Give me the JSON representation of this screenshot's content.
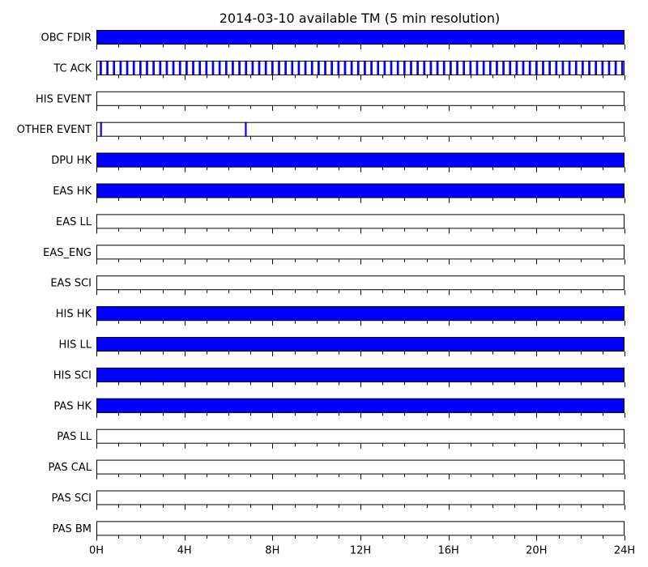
{
  "chart_data": {
    "type": "timeline",
    "title": "2014-03-10 available TM (5 min resolution)",
    "x_unit": "hours",
    "xlim": [
      0,
      24
    ],
    "x_ticks": [
      0,
      4,
      8,
      12,
      16,
      20,
      24
    ],
    "x_tick_labels": [
      "0H",
      "4H",
      "8H",
      "12H",
      "16H",
      "20H",
      "24H"
    ],
    "x_minor_step": 1,
    "colors": {
      "available": "#0000ff",
      "edge": "#000000",
      "background": "#ffffff"
    },
    "rows": [
      {
        "label": "OBC FDIR",
        "intervals": [
          [
            0,
            24
          ]
        ]
      },
      {
        "label": "TC ACK",
        "intervals": [
          [
            0.15,
            0.25
          ],
          [
            0.45,
            0.55
          ],
          [
            0.75,
            0.85
          ],
          [
            1.05,
            1.15
          ],
          [
            1.35,
            1.45
          ],
          [
            1.65,
            1.75
          ],
          [
            1.95,
            2.05
          ],
          [
            2.25,
            2.35
          ],
          [
            2.55,
            2.65
          ],
          [
            2.85,
            2.95
          ],
          [
            3.15,
            3.25
          ],
          [
            3.45,
            3.55
          ],
          [
            3.75,
            3.85
          ],
          [
            4.05,
            4.15
          ],
          [
            4.35,
            4.45
          ],
          [
            4.65,
            4.75
          ],
          [
            4.95,
            5.05
          ],
          [
            5.25,
            5.35
          ],
          [
            5.55,
            5.65
          ],
          [
            5.85,
            5.95
          ],
          [
            6.15,
            6.25
          ],
          [
            6.45,
            6.55
          ],
          [
            6.75,
            6.85
          ],
          [
            7.05,
            7.15
          ],
          [
            7.35,
            7.45
          ],
          [
            7.65,
            7.75
          ],
          [
            7.95,
            8.05
          ],
          [
            8.25,
            8.35
          ],
          [
            8.55,
            8.65
          ],
          [
            8.85,
            8.95
          ],
          [
            9.15,
            9.25
          ],
          [
            9.45,
            9.55
          ],
          [
            9.75,
            9.85
          ],
          [
            10.05,
            10.15
          ],
          [
            10.35,
            10.45
          ],
          [
            10.65,
            10.75
          ],
          [
            10.95,
            11.05
          ],
          [
            11.25,
            11.35
          ],
          [
            11.55,
            11.65
          ],
          [
            11.85,
            11.95
          ],
          [
            12.15,
            12.25
          ],
          [
            12.45,
            12.55
          ],
          [
            12.75,
            12.85
          ],
          [
            13.05,
            13.15
          ],
          [
            13.35,
            13.45
          ],
          [
            13.65,
            13.75
          ],
          [
            13.95,
            14.05
          ],
          [
            14.25,
            14.35
          ],
          [
            14.55,
            14.65
          ],
          [
            14.85,
            14.95
          ],
          [
            15.15,
            15.25
          ],
          [
            15.45,
            15.55
          ],
          [
            15.75,
            15.85
          ],
          [
            16.05,
            16.15
          ],
          [
            16.35,
            16.45
          ],
          [
            16.65,
            16.75
          ],
          [
            16.95,
            17.05
          ],
          [
            17.25,
            17.35
          ],
          [
            17.55,
            17.65
          ],
          [
            17.85,
            17.95
          ],
          [
            18.15,
            18.25
          ],
          [
            18.45,
            18.55
          ],
          [
            18.75,
            18.85
          ],
          [
            19.05,
            19.15
          ],
          [
            19.35,
            19.45
          ],
          [
            19.65,
            19.75
          ],
          [
            19.95,
            20.05
          ],
          [
            20.25,
            20.35
          ],
          [
            20.55,
            20.65
          ],
          [
            20.85,
            20.95
          ],
          [
            21.15,
            21.25
          ],
          [
            21.45,
            21.55
          ],
          [
            21.75,
            21.85
          ],
          [
            22.05,
            22.15
          ],
          [
            22.35,
            22.45
          ],
          [
            22.65,
            22.75
          ],
          [
            22.95,
            23.05
          ],
          [
            23.25,
            23.35
          ],
          [
            23.55,
            23.65
          ],
          [
            23.85,
            23.95
          ]
        ]
      },
      {
        "label": "HIS EVENT",
        "intervals": []
      },
      {
        "label": "OTHER EVENT",
        "intervals": [
          [
            0.17,
            0.25
          ],
          [
            6.75,
            6.83
          ]
        ]
      },
      {
        "label": "DPU HK",
        "intervals": [
          [
            0,
            24
          ]
        ]
      },
      {
        "label": "EAS HK",
        "intervals": [
          [
            0,
            24
          ]
        ]
      },
      {
        "label": "EAS LL",
        "intervals": []
      },
      {
        "label": "EAS_ENG",
        "intervals": []
      },
      {
        "label": "EAS SCI",
        "intervals": []
      },
      {
        "label": "HIS HK",
        "intervals": [
          [
            0,
            24
          ]
        ]
      },
      {
        "label": "HIS LL",
        "intervals": [
          [
            0,
            24
          ]
        ]
      },
      {
        "label": "HIS SCI",
        "intervals": [
          [
            0,
            24
          ]
        ]
      },
      {
        "label": "PAS HK",
        "intervals": [
          [
            0,
            24
          ]
        ]
      },
      {
        "label": "PAS LL",
        "intervals": []
      },
      {
        "label": "PAS CAL",
        "intervals": []
      },
      {
        "label": "PAS SCI",
        "intervals": []
      },
      {
        "label": "PAS BM",
        "intervals": []
      }
    ]
  }
}
